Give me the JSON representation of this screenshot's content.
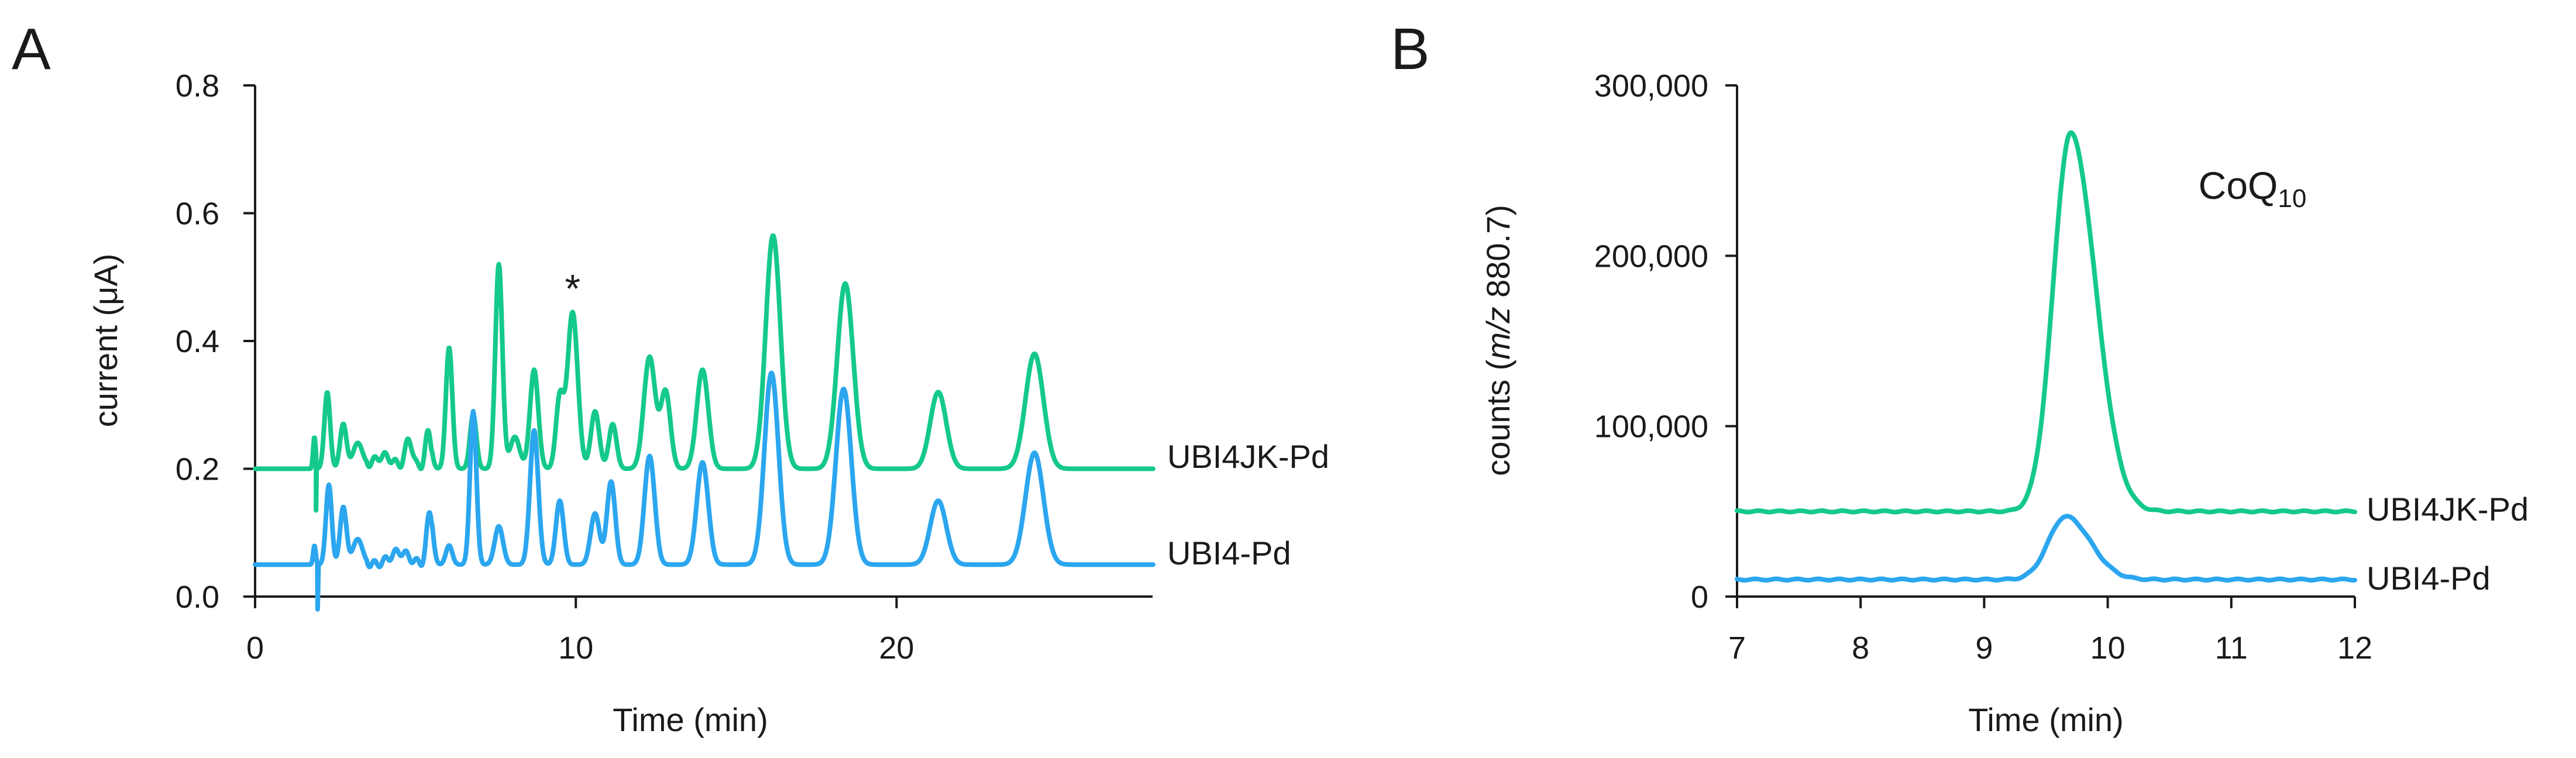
{
  "colors": {
    "green": "#14c98a",
    "blue": "#2ba6ef",
    "axis": "#1a1a1a"
  },
  "panels": {
    "a": {
      "letter": "A",
      "peak_marker": "*"
    },
    "b": {
      "letter": "B",
      "annotation": "CoQ",
      "annotation_sub": "10"
    }
  },
  "chart_data": [
    {
      "panel": "A",
      "type": "line",
      "xlabel": "Time (min)",
      "ylabel": "current (μA)",
      "xlim": [
        0,
        28
      ],
      "ylim": [
        0,
        0.8
      ],
      "xticks": [
        0,
        10,
        20
      ],
      "yticks": [
        "0.0",
        "0.2",
        "0.4",
        "0.6",
        "0.8"
      ],
      "annotations": [
        {
          "text": "*",
          "x": 9.9,
          "y": 0.47
        }
      ],
      "series": [
        {
          "name": "UBI4JK-Pd",
          "color": "#14c98a",
          "baseline": 0.2,
          "dip": {
            "x": 1.9,
            "y": 0.135
          },
          "peaks": [
            [
              1.85,
              0.05,
              0.04
            ],
            [
              2.25,
              0.12,
              0.09
            ],
            [
              2.75,
              0.07,
              0.1
            ],
            [
              3.2,
              0.04,
              0.15
            ],
            [
              4.0,
              0.02,
              0.3
            ],
            [
              4.8,
              0.045,
              0.12
            ],
            [
              5.4,
              0.055,
              0.1
            ],
            [
              6.05,
              0.19,
              0.1
            ],
            [
              6.8,
              0.085,
              0.1
            ],
            [
              7.6,
              0.32,
              0.11
            ],
            [
              8.1,
              0.05,
              0.15
            ],
            [
              8.7,
              0.155,
              0.13
            ],
            [
              9.5,
              0.11,
              0.12
            ],
            [
              9.9,
              0.245,
              0.16
            ],
            [
              10.6,
              0.09,
              0.13
            ],
            [
              11.15,
              0.07,
              0.12
            ],
            [
              12.3,
              0.175,
              0.18
            ],
            [
              12.8,
              0.12,
              0.15
            ],
            [
              13.95,
              0.155,
              0.18
            ],
            [
              16.15,
              0.365,
              0.23
            ],
            [
              18.4,
              0.29,
              0.25
            ],
            [
              21.3,
              0.12,
              0.25
            ],
            [
              24.3,
              0.18,
              0.28
            ]
          ]
        },
        {
          "name": "UBI4-Pd",
          "color": "#2ba6ef",
          "baseline": 0.05,
          "dip": {
            "x": 1.95,
            "y": -0.02
          },
          "peaks": [
            [
              1.85,
              0.03,
              0.04
            ],
            [
              2.3,
              0.125,
              0.09
            ],
            [
              2.75,
              0.09,
              0.1
            ],
            [
              3.2,
              0.04,
              0.15
            ],
            [
              4.5,
              0.02,
              0.3
            ],
            [
              5.45,
              0.08,
              0.1
            ],
            [
              6.05,
              0.03,
              0.1
            ],
            [
              6.8,
              0.24,
              0.1
            ],
            [
              7.6,
              0.06,
              0.13
            ],
            [
              8.7,
              0.21,
              0.13
            ],
            [
              9.5,
              0.1,
              0.12
            ],
            [
              10.6,
              0.08,
              0.14
            ],
            [
              11.1,
              0.13,
              0.13
            ],
            [
              12.3,
              0.17,
              0.16
            ],
            [
              13.95,
              0.16,
              0.18
            ],
            [
              16.1,
              0.3,
              0.22
            ],
            [
              18.35,
              0.275,
              0.24
            ],
            [
              21.3,
              0.1,
              0.25
            ],
            [
              24.3,
              0.175,
              0.28
            ]
          ]
        }
      ]
    },
    {
      "panel": "B",
      "type": "line",
      "xlabel": "Time (min)",
      "ylabel_prefix": "counts (",
      "ylabel_italic": "m/z",
      "ylabel_suffix": " 880.7)",
      "xlim": [
        7,
        12
      ],
      "ylim": [
        0,
        300000
      ],
      "xticks": [
        7,
        8,
        9,
        10,
        11,
        12
      ],
      "yticks": [
        "0",
        "100,000",
        "200,000",
        "300,000"
      ],
      "series": [
        {
          "name": "UBI4JK-Pd",
          "color": "#14c98a",
          "baseline": 50000,
          "peak_x": 9.7,
          "peak_y": 272000
        },
        {
          "name": "UBI4-Pd",
          "color": "#2ba6ef",
          "baseline": 10000,
          "peak_x": 9.66,
          "peak_y": 47000
        }
      ]
    }
  ]
}
